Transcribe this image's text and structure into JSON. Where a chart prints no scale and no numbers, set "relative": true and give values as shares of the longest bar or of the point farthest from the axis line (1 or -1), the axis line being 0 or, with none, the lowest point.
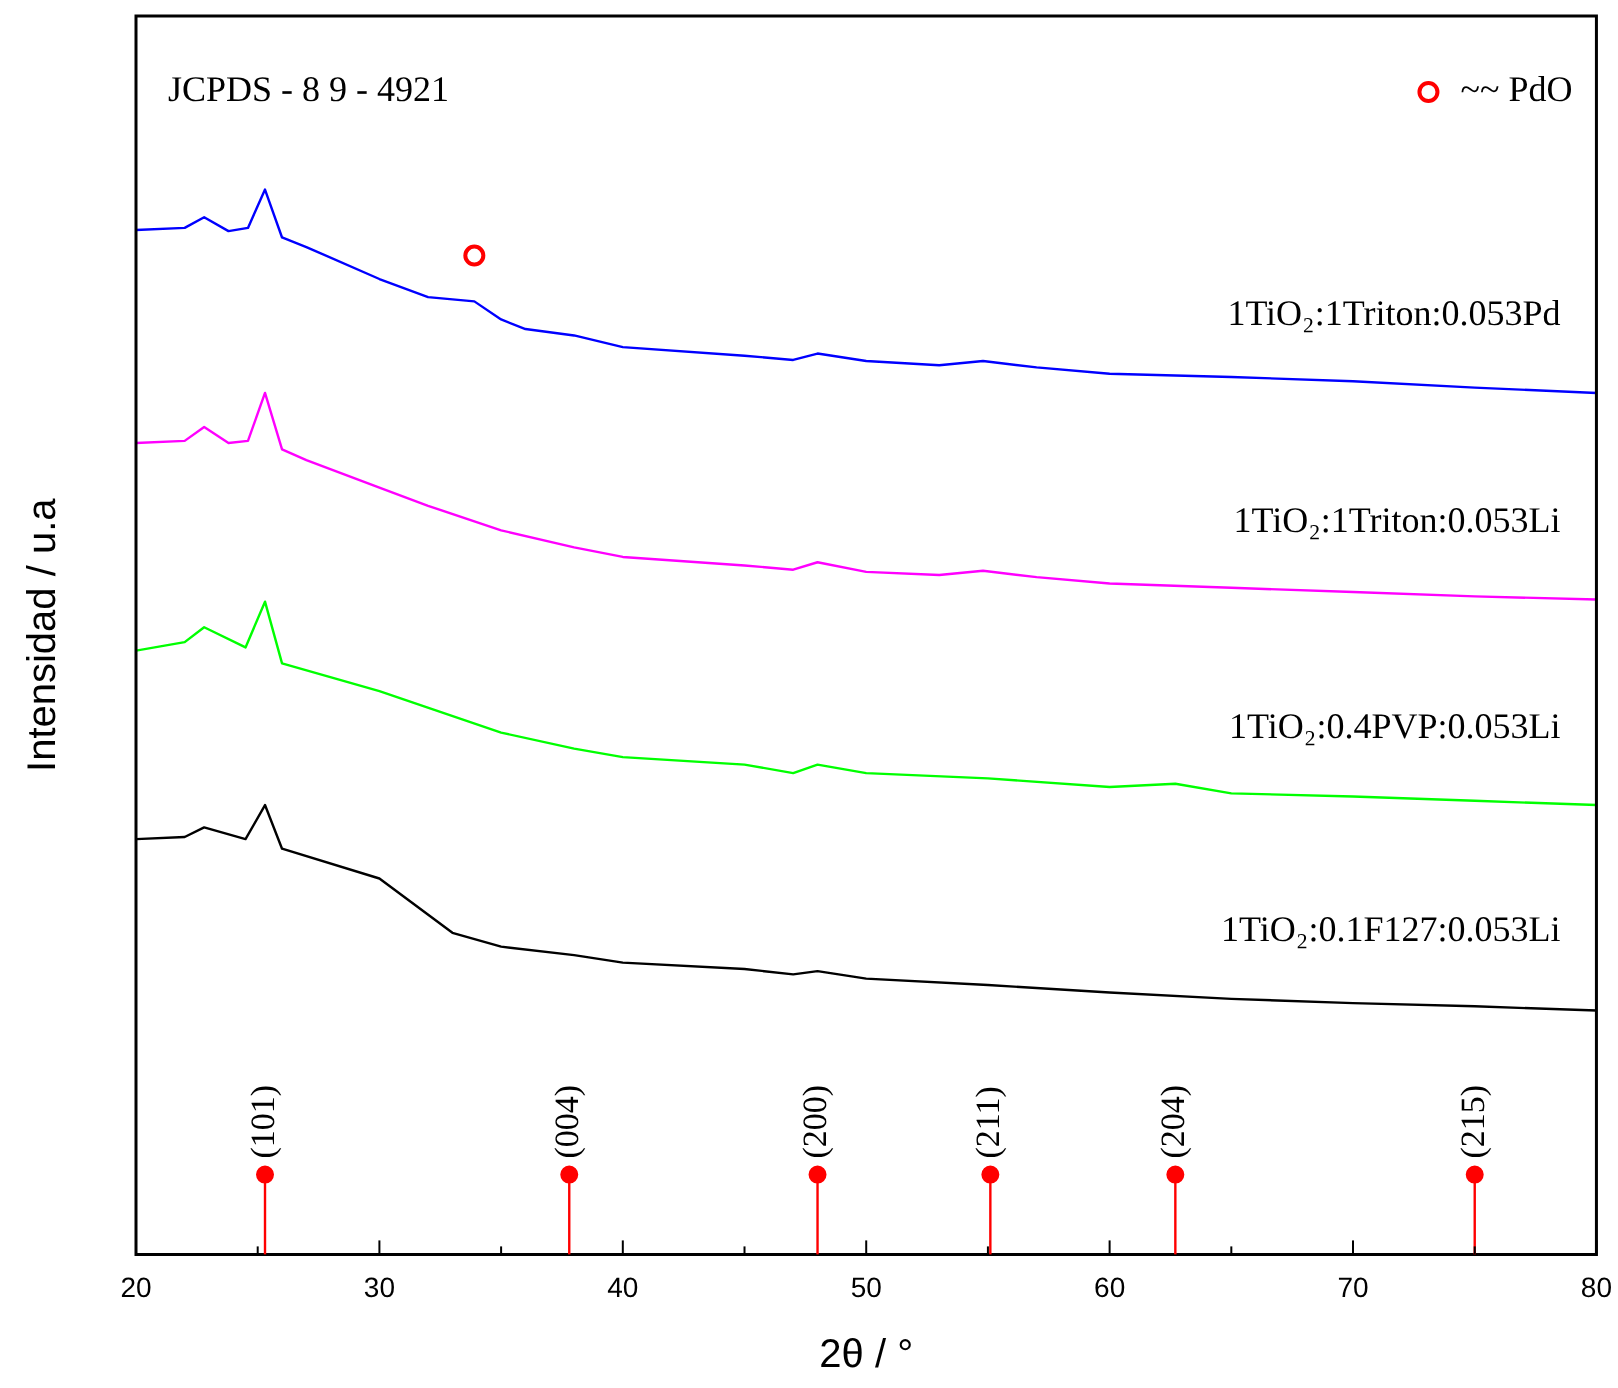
{
  "chart_data": {
    "type": "line",
    "relative": true,
    "xlabel": "2θ / °",
    "ylabel": "Intensidad / u.a",
    "annotations": [
      "JCPDS - 8 9 - 4921",
      {
        "text": "(101)",
        "x": 25.3,
        "y": 0.075
      },
      {
        "text": "(004)",
        "x": 37.8,
        "y": 0.075
      },
      {
        "text": "(200)",
        "x": 48.0,
        "y": 0.075
      },
      {
        "text": "(211)",
        "x": 55.1,
        "y": 0.075
      },
      {
        "text": "(204)",
        "x": 62.7,
        "y": 0.075
      },
      {
        "text": "(215)",
        "x": 75.0,
        "y": 0.075
      }
    ],
    "xlim": [
      20,
      80
    ],
    "xticks": [
      20,
      {
        "value": 25,
        "label": null
      },
      30,
      {
        "value": 35,
        "label": null
      },
      40,
      {
        "value": 45,
        "label": null
      },
      50,
      {
        "value": 55,
        "label": null
      },
      60,
      {
        "value": 65,
        "label": null
      },
      70,
      {
        "value": 75,
        "label": null
      },
      80
    ],
    "grid": false,
    "legend": "top right",
    "marker": "none",
    "line_style": "solid",
    "series": [
      {
        "name": "1TiO₂:1Triton:0.053Pd",
        "color": "#0000ff",
        "x": [
          20,
          22,
          22.8,
          23.8,
          24.6,
          25.3,
          26,
          27,
          30,
          32,
          33.9,
          35,
          36,
          38,
          40,
          45,
          47,
          48,
          50,
          53,
          54.8,
          57,
          60,
          65,
          70,
          75,
          80
        ],
        "values": [
          0.962,
          0.964,
          0.974,
          0.961,
          0.964,
          1,
          0.955,
          0.946,
          0.916,
          0.899,
          0.895,
          0.878,
          0.869,
          0.863,
          0.852,
          0.844,
          0.84,
          0.846,
          0.839,
          0.835,
          0.839,
          0.833,
          0.827,
          0.824,
          0.82,
          0.814,
          0.809
        ]
      },
      {
        "name": "1TiO₂:1Triton:0.053Li",
        "color": "#ff00ff",
        "x": [
          20,
          22,
          22.8,
          23.8,
          24.6,
          25.3,
          26,
          27,
          30,
          32,
          35,
          38,
          40,
          45,
          47,
          48,
          50,
          53,
          54.8,
          57,
          60,
          65,
          70,
          75,
          80
        ],
        "values": [
          0.762,
          0.764,
          0.777,
          0.762,
          0.764,
          0.809,
          0.756,
          0.746,
          0.72,
          0.703,
          0.68,
          0.664,
          0.655,
          0.647,
          0.643,
          0.65,
          0.641,
          0.638,
          0.642,
          0.636,
          0.63,
          0.626,
          0.622,
          0.618,
          0.615
        ]
      },
      {
        "name": "1TiO₂:0.4PVP:0.053Li",
        "color": "#00ff00",
        "x": [
          20,
          22,
          22.8,
          24.5,
          25.3,
          26,
          30,
          35,
          38,
          40,
          45,
          47,
          48,
          50,
          55,
          60,
          62.7,
          65,
          70,
          75,
          80
        ],
        "values": [
          0.567,
          0.575,
          0.589,
          0.57,
          0.613,
          0.555,
          0.529,
          0.49,
          0.475,
          0.467,
          0.46,
          0.452,
          0.46,
          0.452,
          0.447,
          0.439,
          0.442,
          0.433,
          0.43,
          0.426,
          0.422
        ]
      },
      {
        "name": "1TiO₂:0.1F127:0.053Li",
        "color": "#000000",
        "x": [
          20,
          22,
          22.8,
          24.5,
          25.3,
          26,
          30,
          33,
          35,
          38,
          40,
          45,
          47,
          48,
          50,
          55,
          60,
          65,
          70,
          75,
          80
        ],
        "values": [
          0.39,
          0.392,
          0.401,
          0.39,
          0.422,
          0.381,
          0.353,
          0.302,
          0.289,
          0.281,
          0.274,
          0.268,
          0.263,
          0.266,
          0.259,
          0.253,
          0.246,
          0.24,
          0.236,
          0.233,
          0.229
        ]
      },
      {
        "type": "scatter",
        "name": "~~ PdO",
        "color": "#ff0000",
        "marker": "circle",
        "x": [
          33.9
        ],
        "values": [
          0.938
        ]
      },
      {
        "type": "lollipop",
        "color": "#ff0000",
        "marker": "circle",
        "x": [
          25.3,
          37.8,
          48.0,
          55.1,
          62.7,
          75.0
        ],
        "values": [
          0.075,
          0.075,
          0.075,
          0.075,
          0.075,
          0.075
        ]
      }
    ]
  }
}
